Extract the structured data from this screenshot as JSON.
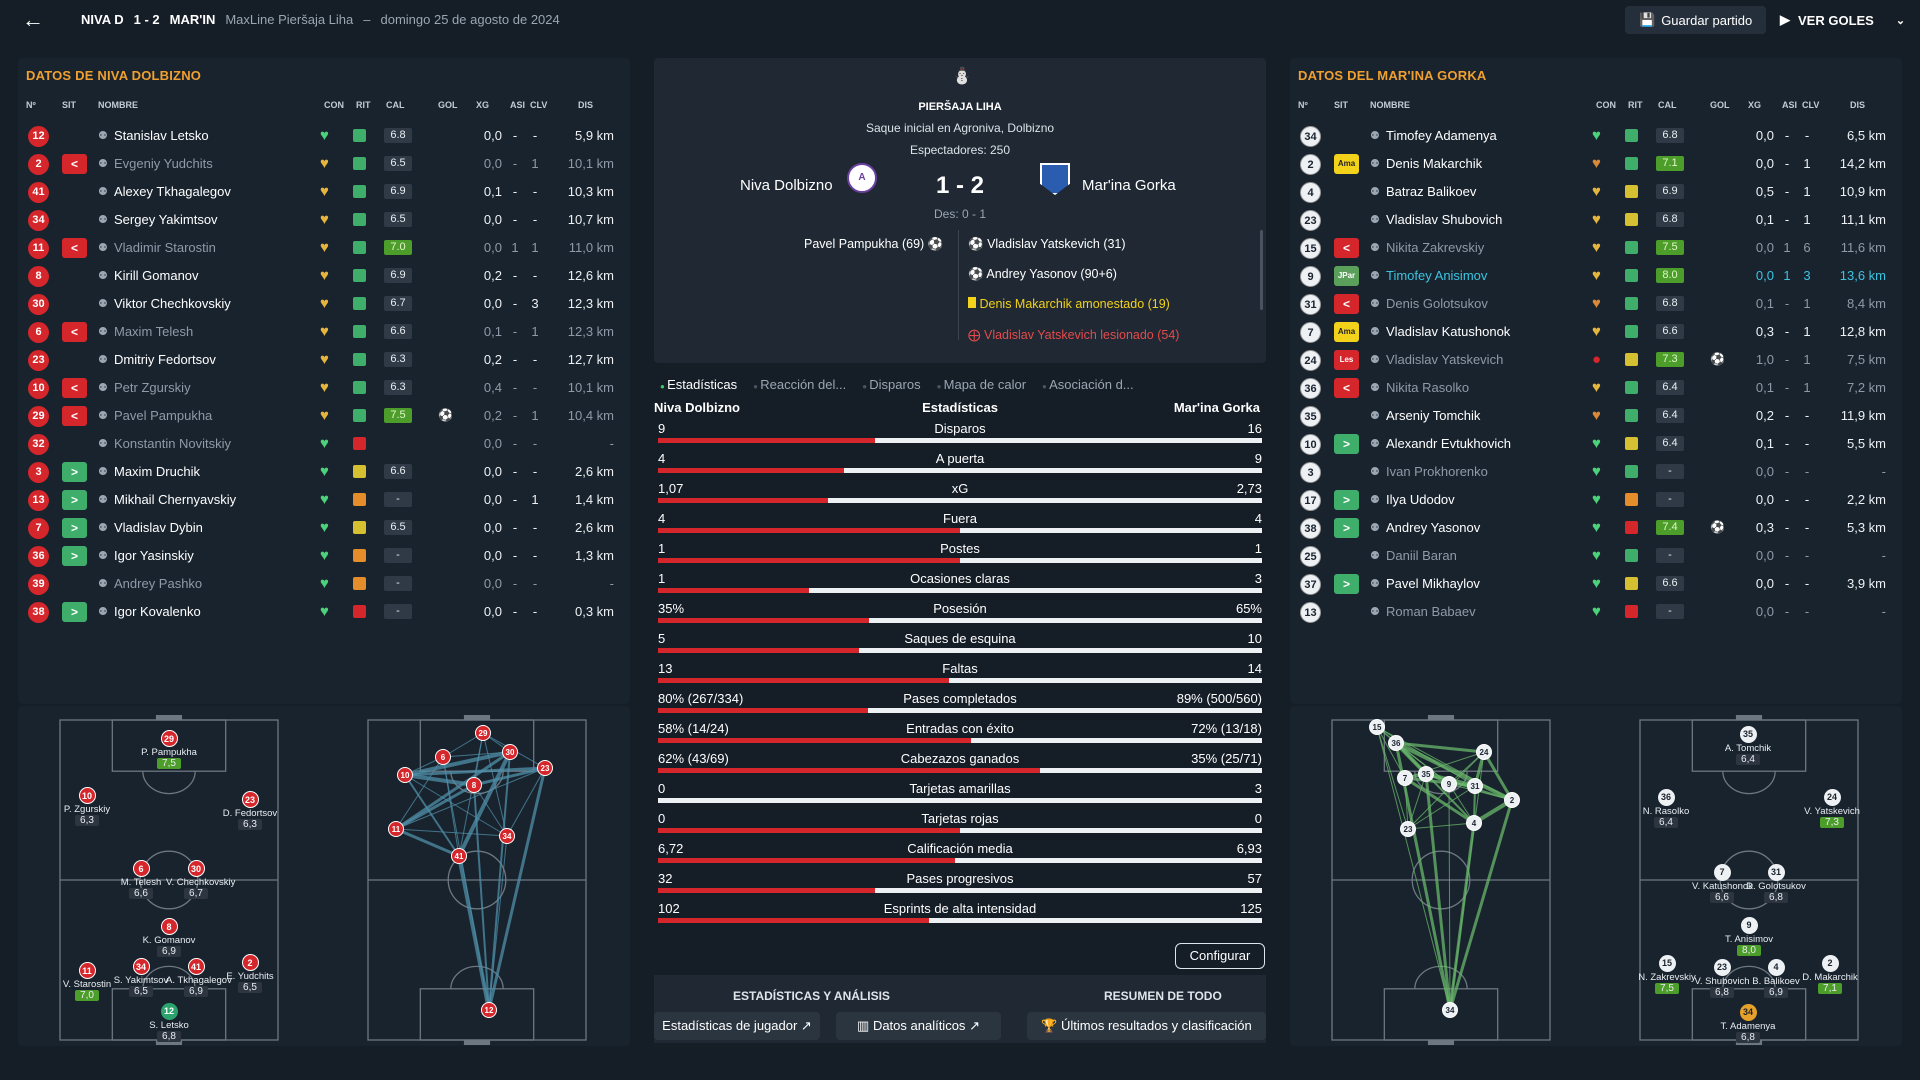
{
  "header": {
    "home_short": "NIVA D",
    "score": "1 - 2",
    "away_short": "MAR'IN",
    "league": "MaxLine Pieršaja Liha",
    "sep": "–",
    "date": "domingo 25 de agosto de 2024",
    "save": "Guardar partido",
    "goals": "VER GOLES"
  },
  "columns": [
    "Nº",
    "SIT",
    "NOMBRE",
    "CON",
    "RIT",
    "CAL",
    "GOL",
    "XG",
    "ASI",
    "CLV",
    "DIS"
  ],
  "home": {
    "title": "DATOS DE NIVA DOLBIZNO",
    "players": [
      {
        "num": "12",
        "sit": "",
        "name": "Stanislav Letsko",
        "cal": "6.8",
        "gol": "",
        "xg": "0,0",
        "asi": "-",
        "clv": "-",
        "dis": "5,9 km",
        "con": "green",
        "rit": "green",
        "hi": false,
        "dim": false
      },
      {
        "num": "2",
        "sit": "out",
        "name": "Evgeniy Yudchits",
        "cal": "6.5",
        "gol": "",
        "xg": "0,0",
        "asi": "-",
        "clv": "1",
        "dis": "10,1 km",
        "con": "yellow",
        "rit": "green",
        "hi": false,
        "dim": true
      },
      {
        "num": "41",
        "sit": "",
        "name": "Alexey Tkhagalegov",
        "cal": "6.9",
        "gol": "",
        "xg": "0,1",
        "asi": "-",
        "clv": "-",
        "dis": "10,3 km",
        "con": "yellow",
        "rit": "green",
        "hi": false,
        "dim": false
      },
      {
        "num": "34",
        "sit": "",
        "name": "Sergey Yakimtsov",
        "cal": "6.5",
        "gol": "",
        "xg": "0,0",
        "asi": "-",
        "clv": "-",
        "dis": "10,7 km",
        "con": "yellow",
        "rit": "green",
        "hi": false,
        "dim": false
      },
      {
        "num": "11",
        "sit": "out",
        "name": "Vladimir Starostin",
        "cal": "7.0",
        "gol": "",
        "xg": "0,0",
        "asi": "1",
        "clv": "1",
        "dis": "11,0 km",
        "con": "yellow",
        "rit": "green",
        "hi": true,
        "dim": true
      },
      {
        "num": "8",
        "sit": "",
        "name": "Kirill Gomanov",
        "cal": "6.9",
        "gol": "",
        "xg": "0,2",
        "asi": "-",
        "clv": "-",
        "dis": "12,6 km",
        "con": "yellow",
        "rit": "green",
        "hi": false,
        "dim": false
      },
      {
        "num": "30",
        "sit": "",
        "name": "Viktor Chechkovskiy",
        "cal": "6.7",
        "gol": "",
        "xg": "0,0",
        "asi": "-",
        "clv": "3",
        "dis": "12,3 km",
        "con": "yellow",
        "rit": "green",
        "hi": false,
        "dim": false
      },
      {
        "num": "6",
        "sit": "out",
        "name": "Maxim Telesh",
        "cal": "6.6",
        "gol": "",
        "xg": "0,1",
        "asi": "-",
        "clv": "1",
        "dis": "12,3 km",
        "con": "yellow",
        "rit": "green",
        "hi": false,
        "dim": true
      },
      {
        "num": "23",
        "sit": "",
        "name": "Dmitriy Fedortsov",
        "cal": "6.3",
        "gol": "",
        "xg": "0,2",
        "asi": "-",
        "clv": "-",
        "dis": "12,7 km",
        "con": "yellow",
        "rit": "green",
        "hi": false,
        "dim": false
      },
      {
        "num": "10",
        "sit": "out",
        "name": "Petr Zgurskiy",
        "cal": "6.3",
        "gol": "",
        "xg": "0,4",
        "asi": "-",
        "clv": "-",
        "dis": "10,1 km",
        "con": "yellow",
        "rit": "green",
        "hi": false,
        "dim": true
      },
      {
        "num": "29",
        "sit": "out",
        "name": "Pavel Pampukha",
        "cal": "7.5",
        "gol": "⚽",
        "xg": "0,2",
        "asi": "-",
        "clv": "1",
        "dis": "10,4 km",
        "con": "yellow",
        "rit": "green",
        "hi": true,
        "dim": true
      },
      {
        "num": "32",
        "sit": "",
        "name": "Konstantin Novitskiy",
        "cal": "",
        "gol": "",
        "xg": "0,0",
        "asi": "-",
        "clv": "-",
        "dis": "-",
        "con": "green",
        "rit": "red",
        "hi": false,
        "dim": true
      },
      {
        "num": "3",
        "sit": "in",
        "name": "Maxim Druchik",
        "cal": "6.6",
        "gol": "",
        "xg": "0,0",
        "asi": "-",
        "clv": "-",
        "dis": "2,6 km",
        "con": "green",
        "rit": "yellow",
        "hi": false,
        "dim": false
      },
      {
        "num": "13",
        "sit": "in",
        "name": "Mikhail Chernyavskiy",
        "cal": "-",
        "gol": "",
        "xg": "0,0",
        "asi": "-",
        "clv": "1",
        "dis": "1,4 km",
        "con": "green",
        "rit": "orange",
        "hi": false,
        "dim": false
      },
      {
        "num": "7",
        "sit": "in",
        "name": "Vladislav Dybin",
        "cal": "6.5",
        "gol": "",
        "xg": "0,0",
        "asi": "-",
        "clv": "-",
        "dis": "2,6 km",
        "con": "green",
        "rit": "yellow",
        "hi": false,
        "dim": false
      },
      {
        "num": "36",
        "sit": "in",
        "name": "Igor Yasinskiy",
        "cal": "-",
        "gol": "",
        "xg": "0,0",
        "asi": "-",
        "clv": "-",
        "dis": "1,3 km",
        "con": "green",
        "rit": "orange",
        "hi": false,
        "dim": false
      },
      {
        "num": "39",
        "sit": "",
        "name": "Andrey Pashko",
        "cal": "-",
        "gol": "",
        "xg": "0,0",
        "asi": "-",
        "clv": "-",
        "dis": "-",
        "con": "green",
        "rit": "orange",
        "hi": false,
        "dim": true
      },
      {
        "num": "38",
        "sit": "in",
        "name": "Igor Kovalenko",
        "cal": "-",
        "gol": "",
        "xg": "0,0",
        "asi": "-",
        "clv": "-",
        "dis": "0,3 km",
        "con": "green",
        "rit": "red",
        "hi": false,
        "dim": false
      }
    ]
  },
  "away": {
    "title": "DATOS DEL MAR'INA GORKA",
    "players": [
      {
        "num": "34",
        "sit": "",
        "name": "Timofey Adamenya",
        "cal": "6.8",
        "gol": "",
        "xg": "0,0",
        "asi": "-",
        "clv": "-",
        "dis": "6,5 km",
        "con": "green",
        "rit": "green",
        "hi": false,
        "dim": false
      },
      {
        "num": "2",
        "sit": "Ama",
        "name": "Denis Makarchik",
        "cal": "7.1",
        "gol": "",
        "xg": "0,0",
        "asi": "-",
        "clv": "1",
        "dis": "14,2 km",
        "con": "orange",
        "rit": "green",
        "hi": true,
        "dim": false
      },
      {
        "num": "4",
        "sit": "",
        "name": "Batraz Balikoev",
        "cal": "6.9",
        "gol": "",
        "xg": "0,5",
        "asi": "-",
        "clv": "1",
        "dis": "10,9 km",
        "con": "yellow",
        "rit": "yellow",
        "hi": false,
        "dim": false
      },
      {
        "num": "23",
        "sit": "",
        "name": "Vladislav Shubovich",
        "cal": "6.8",
        "gol": "",
        "xg": "0,1",
        "asi": "-",
        "clv": "1",
        "dis": "11,1 km",
        "con": "yellow",
        "rit": "yellow",
        "hi": false,
        "dim": false
      },
      {
        "num": "15",
        "sit": "out",
        "name": "Nikita Zakrevskiy",
        "cal": "7.5",
        "gol": "",
        "xg": "0,0",
        "asi": "1",
        "clv": "6",
        "dis": "11,6 km",
        "con": "yellow",
        "rit": "green",
        "hi": true,
        "dim": true
      },
      {
        "num": "9",
        "sit": "JPar",
        "name": "Timofey Anisimov",
        "cal": "8.0",
        "gol": "",
        "xg": "0,0",
        "asi": "1",
        "clv": "3",
        "dis": "13,6 km",
        "con": "yellow",
        "rit": "green",
        "hi": true,
        "dim": false,
        "cy": true
      },
      {
        "num": "31",
        "sit": "out",
        "name": "Denis Golotsukov",
        "cal": "6.8",
        "gol": "",
        "xg": "0,1",
        "asi": "-",
        "clv": "1",
        "dis": "8,4 km",
        "con": "orange",
        "rit": "green",
        "hi": false,
        "dim": true
      },
      {
        "num": "7",
        "sit": "Ama",
        "name": "Vladislav Katushonok",
        "cal": "6.6",
        "gol": "",
        "xg": "0,3",
        "asi": "-",
        "clv": "1",
        "dis": "12,8 km",
        "con": "yellow",
        "rit": "green",
        "hi": false,
        "dim": false
      },
      {
        "num": "24",
        "sit": "Les",
        "name": "Vladislav Yatskevich",
        "cal": "7.3",
        "gol": "⚽",
        "xg": "1,0",
        "asi": "-",
        "clv": "1",
        "dis": "7,5 km",
        "con": "injury",
        "rit": "yellow",
        "hi": true,
        "dim": true
      },
      {
        "num": "36",
        "sit": "out",
        "name": "Nikita Rasolko",
        "cal": "6.4",
        "gol": "",
        "xg": "0,1",
        "asi": "-",
        "clv": "1",
        "dis": "7,2 km",
        "con": "yellow",
        "rit": "green",
        "hi": false,
        "dim": true
      },
      {
        "num": "35",
        "sit": "",
        "name": "Arseniy Tomchik",
        "cal": "6.4",
        "gol": "",
        "xg": "0,2",
        "asi": "-",
        "clv": "-",
        "dis": "11,9 km",
        "con": "orange",
        "rit": "green",
        "hi": false,
        "dim": false
      },
      {
        "num": "10",
        "sit": "in",
        "name": "Alexandr Evtukhovich",
        "cal": "6.4",
        "gol": "",
        "xg": "0,1",
        "asi": "-",
        "clv": "-",
        "dis": "5,5 km",
        "con": "green",
        "rit": "yellow",
        "hi": false,
        "dim": false
      },
      {
        "num": "3",
        "sit": "",
        "name": "Ivan Prokhorenko",
        "cal": "-",
        "gol": "",
        "xg": "0,0",
        "asi": "-",
        "clv": "-",
        "dis": "-",
        "con": "green",
        "rit": "green",
        "hi": false,
        "dim": true
      },
      {
        "num": "17",
        "sit": "in",
        "name": "Ilya Udodov",
        "cal": "-",
        "gol": "",
        "xg": "0,0",
        "asi": "-",
        "clv": "-",
        "dis": "2,2 km",
        "con": "green",
        "rit": "orange",
        "hi": false,
        "dim": false
      },
      {
        "num": "38",
        "sit": "in",
        "name": "Andrey Yasonov",
        "cal": "7.4",
        "gol": "⚽",
        "xg": "0,3",
        "asi": "-",
        "clv": "-",
        "dis": "5,3 km",
        "con": "green",
        "rit": "red",
        "hi": true,
        "dim": false
      },
      {
        "num": "25",
        "sit": "",
        "name": "Daniil Baran",
        "cal": "-",
        "gol": "",
        "xg": "0,0",
        "asi": "-",
        "clv": "-",
        "dis": "-",
        "con": "green",
        "rit": "green",
        "hi": false,
        "dim": true
      },
      {
        "num": "37",
        "sit": "in",
        "name": "Pavel Mikhaylov",
        "cal": "6.6",
        "gol": "",
        "xg": "0,0",
        "asi": "-",
        "clv": "-",
        "dis": "3,9 km",
        "con": "green",
        "rit": "yellow",
        "hi": false,
        "dim": false
      },
      {
        "num": "13",
        "sit": "",
        "name": "Roman Babaev",
        "cal": "-",
        "gol": "",
        "xg": "0,0",
        "asi": "-",
        "clv": "-",
        "dis": "-",
        "con": "green",
        "rit": "red",
        "hi": false,
        "dim": true
      }
    ]
  },
  "match": {
    "league": "PIERŠAJA LIHA",
    "venue": "Saque inicial en Agroniva, Dolbizno",
    "attendance": "Espectadores: 250",
    "home": "Niva Dolbizno",
    "away": "Mar'ina Gorka",
    "score": "1 - 2",
    "ht": "Des: 0 - 1",
    "home_events": [
      "Pavel Pampukha (69)"
    ],
    "away_events": [
      "Vladislav Yatskevich (31)",
      "Andrey Yasonov (90+6)",
      "Denis Makarchik amonestado (19)",
      "Vladislav Yatskevich lesionado (54)"
    ]
  },
  "tabs": [
    "Estadísticas",
    "Reacción del...",
    "Disparos",
    "Mapa de calor",
    "Asociación d..."
  ],
  "stats": {
    "home": "Niva Dolbizno",
    "title": "Estadísticas",
    "away": "Mar'ina Gorka",
    "rows": [
      {
        "label": "Disparos",
        "h": "9",
        "a": "16",
        "hv": 9,
        "av": 16
      },
      {
        "label": "A puerta",
        "h": "4",
        "a": "9",
        "hv": 4,
        "av": 9
      },
      {
        "label": "xG",
        "h": "1,07",
        "a": "2,73",
        "hv": 1.07,
        "av": 2.73
      },
      {
        "label": "Fuera",
        "h": "4",
        "a": "4",
        "hv": 4,
        "av": 4
      },
      {
        "label": "Postes",
        "h": "1",
        "a": "1",
        "hv": 1,
        "av": 1
      },
      {
        "label": "Ocasiones claras",
        "h": "1",
        "a": "3",
        "hv": 1,
        "av": 3
      },
      {
        "label": "Posesión",
        "h": "35%",
        "a": "65%",
        "hv": 35,
        "av": 65
      },
      {
        "label": "Saques de esquina",
        "h": "5",
        "a": "10",
        "hv": 5,
        "av": 10
      },
      {
        "label": "Faltas",
        "h": "13",
        "a": "14",
        "hv": 13,
        "av": 14
      },
      {
        "label": "Pases completados",
        "h": "80% (267/334)",
        "a": "89% (500/560)",
        "hv": 267,
        "av": 500
      },
      {
        "label": "Entradas con éxito",
        "h": "58% (14/24)",
        "a": "72% (13/18)",
        "hv": 14,
        "av": 13
      },
      {
        "label": "Cabezazos ganados",
        "h": "62% (43/69)",
        "a": "35% (25/71)",
        "hv": 43,
        "av": 25
      },
      {
        "label": "Tarjetas amarillas",
        "h": "0",
        "a": "3",
        "hv": 0,
        "av": 3
      },
      {
        "label": "Tarjetas rojas",
        "h": "0",
        "a": "0",
        "hv": 0,
        "av": 0
      },
      {
        "label": "Calificación media",
        "h": "6,72",
        "a": "6,93",
        "hv": 6.72,
        "av": 6.93
      },
      {
        "label": "Pases progresivos",
        "h": "32",
        "a": "57",
        "hv": 32,
        "av": 57
      },
      {
        "label": "Esprints de alta intensidad",
        "h": "102",
        "a": "125",
        "hv": 102,
        "av": 125
      }
    ]
  },
  "footer": {
    "configure": "Configurar",
    "h1": "ESTADÍSTICAS Y ANÁLISIS",
    "h2": "RESUMEN DE TODO",
    "b1": "Estadísticas de jugador",
    "b2": "Datos analíticos",
    "b3": "Últimos resultados y clasificación"
  },
  "home_formation": [
    {
      "num": "29",
      "name": "P. Pampukha",
      "r": "7,5",
      "hi": true
    },
    {
      "num": "10",
      "name": "P. Zgurskiy",
      "r": "6,3"
    },
    {
      "num": "23",
      "name": "D. Fedortsov",
      "r": "6,3"
    },
    {
      "num": "6",
      "name": "M. Telesh",
      "r": "6,6"
    },
    {
      "num": "30",
      "name": "V. Chechkovskiy",
      "r": "6,7"
    },
    {
      "num": "8",
      "name": "K. Gomanov",
      "r": "6,9"
    },
    {
      "num": "11",
      "name": "V. Starostin",
      "r": "7,0",
      "hi": true
    },
    {
      "num": "34",
      "name": "S. Yakimtsov",
      "r": "6,5"
    },
    {
      "num": "41",
      "name": "A. Tkhagalegov",
      "r": "6,9"
    },
    {
      "num": "2",
      "name": "E. Yudchits",
      "r": "6,5"
    },
    {
      "num": "12",
      "name": "S. Letsko",
      "r": "6,8",
      "gk": true
    }
  ],
  "away_formation": [
    {
      "num": "35",
      "name": "A. Tomchik",
      "r": "6,4"
    },
    {
      "num": "36",
      "name": "N. Rasolko",
      "r": "6,4"
    },
    {
      "num": "24",
      "name": "V. Yatskevich",
      "r": "7,3",
      "hi": true
    },
    {
      "num": "7",
      "name": "V. Katushonok",
      "r": "6,6"
    },
    {
      "num": "31",
      "name": "D. Golotsukov",
      "r": "6,8"
    },
    {
      "num": "9",
      "name": "T. Anisimov",
      "r": "8,0",
      "hi": true
    },
    {
      "num": "15",
      "name": "N. Zakrevskiy",
      "r": "7,5",
      "hi": true
    },
    {
      "num": "23",
      "name": "V. Shubovich",
      "r": "6,8"
    },
    {
      "num": "4",
      "name": "B. Balikoev",
      "r": "6,9"
    },
    {
      "num": "2",
      "name": "D. Makarchik",
      "r": "7,1",
      "hi": true
    },
    {
      "num": "34",
      "name": "T. Adamenya",
      "r": "6,8",
      "gk": true
    }
  ],
  "home_network": [
    "29",
    "30",
    "23",
    "10",
    "6",
    "8",
    "11",
    "41",
    "34",
    "12"
  ],
  "away_network": [
    "15",
    "36",
    "7",
    "35",
    "9",
    "31",
    "24",
    "2",
    "23",
    "4",
    "34"
  ],
  "colors": {
    "accent": "#f0a030",
    "red": "#d5262b",
    "green": "#3fae6b",
    "cyan": "#3cc3e0"
  }
}
